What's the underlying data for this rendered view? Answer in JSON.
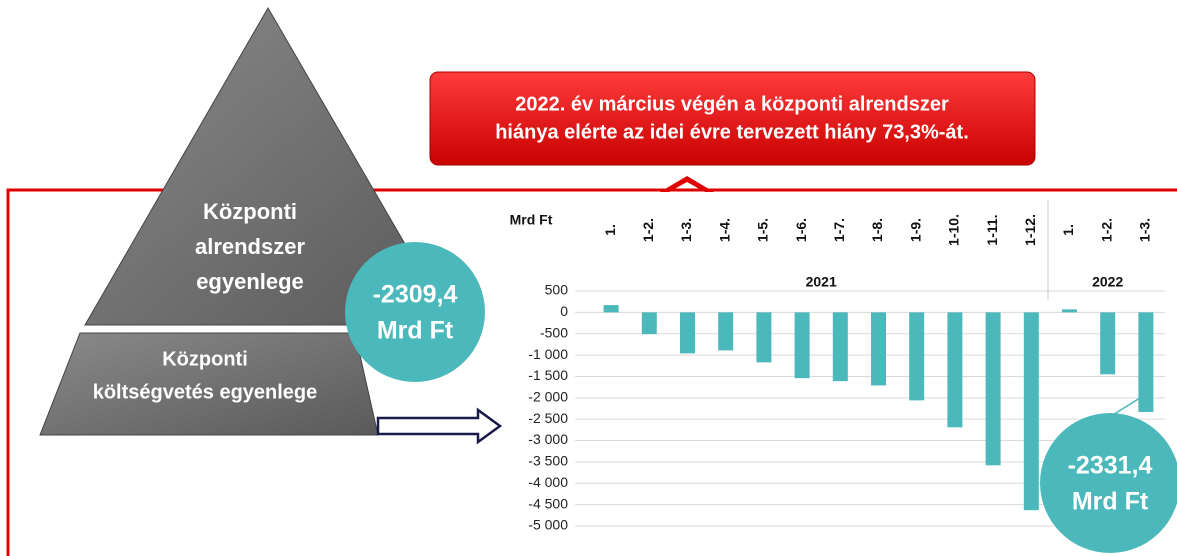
{
  "callout": {
    "lines": [
      "2022. év március végén  a központi alrendszer",
      "hiánya elérte az idei évre tervezett hiány 73,3%-át."
    ]
  },
  "pyramid": {
    "top": [
      "Központi",
      "alrendszer",
      "egyenlege"
    ],
    "bottom": [
      "Központi",
      "költségvetés  egyenlege"
    ]
  },
  "badges": [
    {
      "lines": [
        "-2309,4",
        "Mrd Ft"
      ]
    },
    {
      "lines": [
        "-2331,4",
        "Mrd Ft"
      ]
    }
  ],
  "chart_data": {
    "type": "bar",
    "ylabel": "Mrd Ft",
    "color": "#4bb8bc",
    "grid": true,
    "groups": [
      {
        "label": "2021",
        "categories": [
          "1.",
          "1-2.",
          "1-3.",
          "1-4.",
          "1-5.",
          "1-6.",
          "1-7.",
          "1-8.",
          "1-9.",
          "1-10.",
          "1-11.",
          "1-12."
        ]
      },
      {
        "label": "2022",
        "categories": [
          "1.",
          "1-2.",
          "1-3."
        ]
      }
    ],
    "values": [
      170,
      -510,
      -960,
      -890,
      -1170,
      -1540,
      -1610,
      -1710,
      -2060,
      -2690,
      -3580,
      -4630,
      70,
      -1450,
      -2331.4
    ],
    "ylim": [
      -5000,
      500
    ],
    "yticks": [
      500,
      0,
      -500,
      {
        "value": -1000,
        "label": "-1 000"
      },
      {
        "value": -1500,
        "label": "-1 500"
      },
      {
        "value": -2000,
        "label": "-2 000"
      },
      {
        "value": -2500,
        "label": "-2 500"
      },
      {
        "value": -3000,
        "label": "-3 000"
      },
      {
        "value": -3500,
        "label": "-3 500"
      },
      {
        "value": -4000,
        "label": "-4 000"
      },
      {
        "value": -4500,
        "label": "-4 500"
      },
      {
        "value": -5000,
        "label": "-5 000"
      }
    ]
  }
}
